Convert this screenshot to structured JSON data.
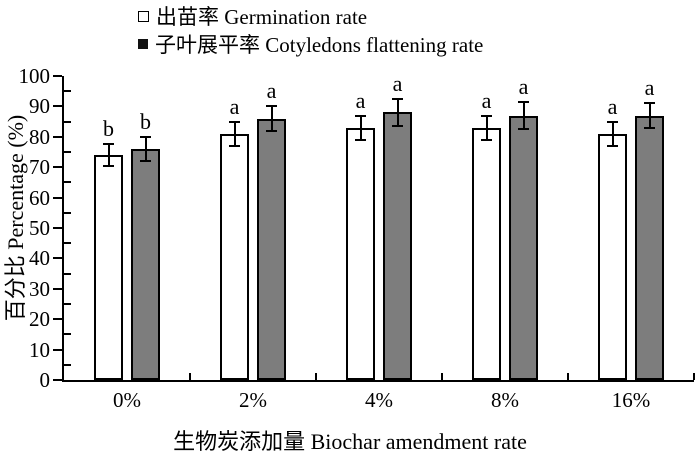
{
  "legend": {
    "items": [
      {
        "label": "出苗率 Germination rate",
        "marker": "open-square",
        "fill": "#ffffff"
      },
      {
        "label": "子叶展平率 Cotyledons flattening rate",
        "marker": "filled-square",
        "fill": "#111111"
      }
    ]
  },
  "chart_data": {
    "type": "bar",
    "title": "",
    "categories": [
      "0%",
      "2%",
      "4%",
      "8%",
      "16%"
    ],
    "series": [
      {
        "name": "出苗率 Germination rate",
        "values": [
          74,
          81,
          83,
          83,
          81
        ],
        "errors": [
          3.5,
          4,
          4,
          4,
          4
        ],
        "letters": [
          "b",
          "a",
          "a",
          "a",
          "a"
        ],
        "fill": "#ffffff"
      },
      {
        "name": "子叶展平率 Cotyledons flattening rate",
        "values": [
          76,
          86,
          88,
          87,
          87
        ],
        "errors": [
          4,
          4,
          4.5,
          4.5,
          4
        ],
        "letters": [
          "b",
          "a",
          "a",
          "a",
          "a"
        ],
        "fill": "#7d7d7d"
      }
    ],
    "xlabel": "生物炭添加量 Biochar amendment rate",
    "ylabel": "百分比 Percentage (%)",
    "ylim": [
      0,
      100
    ],
    "yticks": [
      0,
      10,
      20,
      30,
      40,
      50,
      60,
      70,
      80,
      90,
      100
    ],
    "yminor_step": 5,
    "grid": false,
    "legend_position": "top-center",
    "axis_color": "#000000",
    "background": "#ffffff"
  }
}
